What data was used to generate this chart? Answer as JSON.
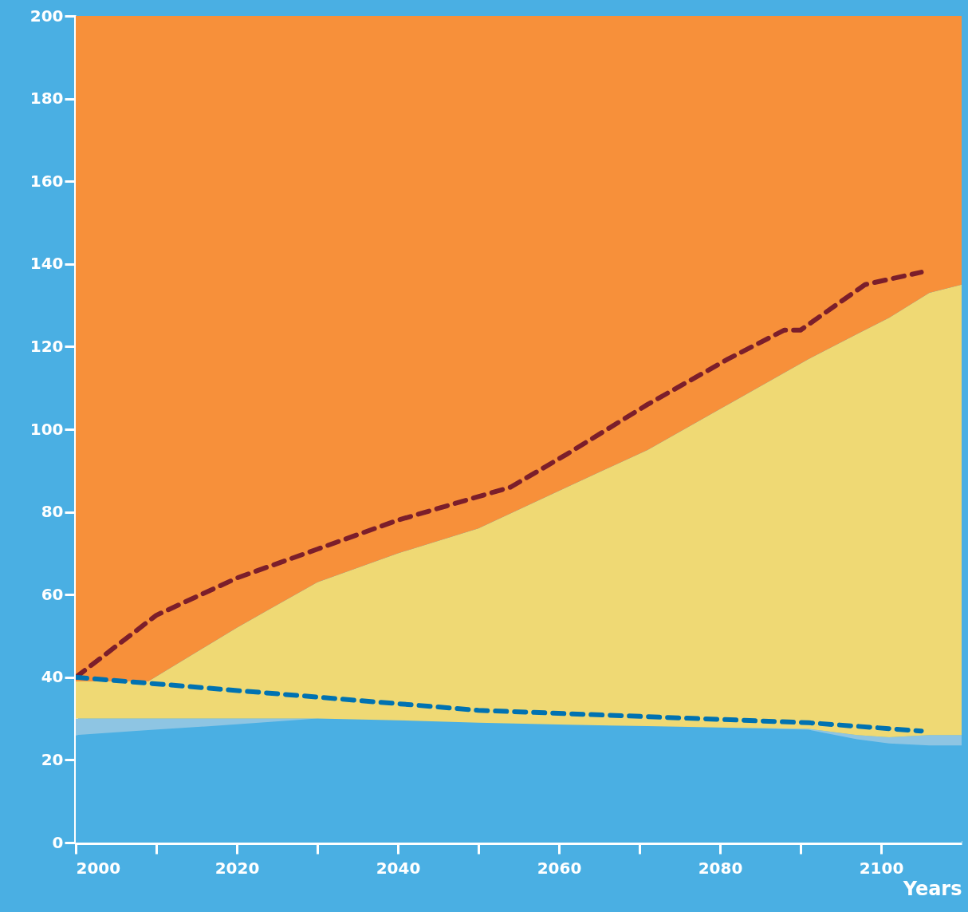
{
  "chart_data": {
    "type": "area",
    "stacked": true,
    "xlabel": "Years",
    "xlim": [
      2000,
      2110
    ],
    "ylim": [
      0,
      200
    ],
    "xticks": [
      2000,
      {
        "value": 2010,
        "label": null
      },
      2020,
      {
        "value": 2030,
        "label": null
      },
      2040,
      {
        "value": 2050,
        "label": null
      },
      2060,
      {
        "value": 2070,
        "label": null
      },
      2080,
      {
        "value": 2090,
        "label": null
      },
      2100
    ],
    "yticks": [
      0,
      20,
      40,
      60,
      80,
      100,
      120,
      140,
      160,
      180,
      200
    ],
    "grid": false,
    "x": [
      2000,
      2009,
      2020,
      2030,
      2040,
      2050,
      2061,
      2071,
      2081,
      2091,
      2097,
      2101,
      2106,
      2110
    ],
    "series": [
      {
        "color": "#4aafe3",
        "values": [
          26,
          27.2,
          28.6,
          30,
          29.6,
          29,
          28.5,
          28.2,
          27.8,
          27.3,
          25,
          24,
          23.5,
          23.5
        ]
      },
      {
        "color": "#8ec5e3",
        "values": [
          4,
          2.8,
          1.4,
          0,
          0,
          0,
          0,
          0,
          0,
          0.2,
          1,
          1.5,
          2.5,
          2.5
        ]
      },
      {
        "color": "#efd974",
        "values": [
          9,
          9,
          22,
          33,
          40.4,
          47,
          57.5,
          66.8,
          78.2,
          89.5,
          97,
          101.5,
          107,
          109
        ]
      },
      {
        "color": "#f7903a",
        "values": [
          161,
          161,
          148,
          137,
          130,
          124,
          114,
          105,
          94,
          83,
          77,
          73,
          67,
          65
        ]
      },
      {
        "type": "line",
        "color": "#7b1e2b",
        "line_style": "dashed",
        "x": [
          2000,
          2010,
          2020,
          2030,
          2040,
          2054,
          2061,
          2071,
          2081,
          2088,
          2090,
          2098,
          2105
        ],
        "values": [
          40,
          55,
          64,
          71,
          78,
          86,
          94,
          106,
          117,
          124,
          124,
          135,
          138
        ]
      },
      {
        "type": "line",
        "color": "#0072b1",
        "line_style": "dashed",
        "x": [
          2000,
          2050,
          2091,
          2105
        ],
        "values": [
          40,
          32,
          29,
          27
        ]
      }
    ]
  }
}
